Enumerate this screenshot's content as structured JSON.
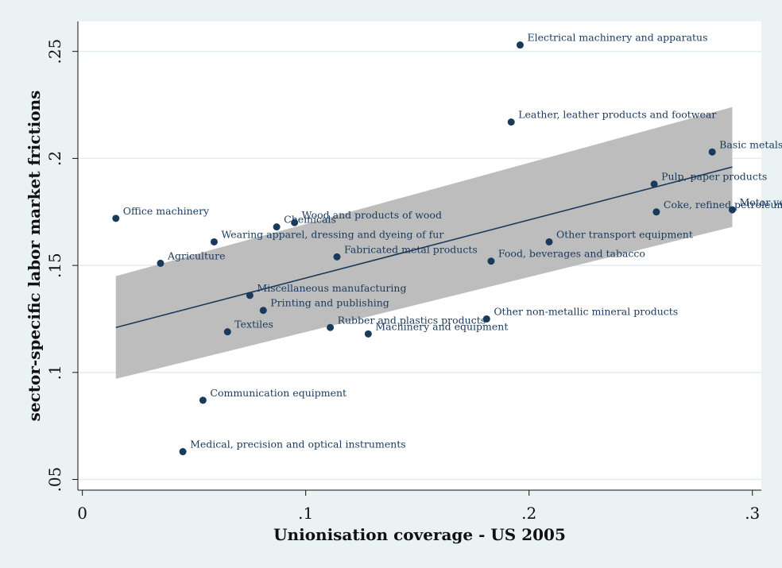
{
  "chart_data": {
    "type": "scatter",
    "xlabel": "Unionisation coverage - US 2005",
    "ylabel": "sector-specific labor market frictions",
    "xlim": [
      -0.002,
      0.304
    ],
    "ylim": [
      0.045,
      0.264
    ],
    "xticks": [
      0,
      0.1,
      0.2,
      0.3
    ],
    "xtick_labels": [
      "0",
      ".1",
      ".2",
      ".3"
    ],
    "yticks": [
      0.05,
      0.1,
      0.15,
      0.2,
      0.25
    ],
    "ytick_labels": [
      ".05",
      ".1",
      ".15",
      ".2",
      ".25"
    ],
    "grid": "horizontal",
    "points": [
      {
        "label": "Electrical machinery and apparatus",
        "x": 0.196,
        "y": 0.253
      },
      {
        "label": "Leather, leather products and footwear",
        "x": 0.192,
        "y": 0.217
      },
      {
        "label": "Basic metals",
        "x": 0.282,
        "y": 0.203
      },
      {
        "label": "Pulp, paper products",
        "x": 0.256,
        "y": 0.188
      },
      {
        "label": "Motor vehicles",
        "x": 0.291,
        "y": 0.176
      },
      {
        "label": "Coke, refined petroleum products",
        "x": 0.257,
        "y": 0.175
      },
      {
        "label": "Office machinery",
        "x": 0.015,
        "y": 0.172
      },
      {
        "label": "Chemicals",
        "x": 0.087,
        "y": 0.168
      },
      {
        "label": "Wood and products of wood",
        "x": 0.095,
        "y": 0.17
      },
      {
        "label": "Wearing apparel, dressing and dyeing of fur",
        "x": 0.059,
        "y": 0.161
      },
      {
        "label": "Other transport equipment",
        "x": 0.209,
        "y": 0.161
      },
      {
        "label": "Fabricated metal products",
        "x": 0.114,
        "y": 0.154
      },
      {
        "label": "Agriculture",
        "x": 0.035,
        "y": 0.151
      },
      {
        "label": "Food, beverages and tabacco",
        "x": 0.183,
        "y": 0.152
      },
      {
        "label": "Miscellaneous manufacturing",
        "x": 0.075,
        "y": 0.136
      },
      {
        "label": "Printing and publishing",
        "x": 0.081,
        "y": 0.129
      },
      {
        "label": "Other non-metallic mineral products",
        "x": 0.181,
        "y": 0.125
      },
      {
        "label": "Rubber and plastics products",
        "x": 0.111,
        "y": 0.121
      },
      {
        "label": "Textiles",
        "x": 0.065,
        "y": 0.119
      },
      {
        "label": "Machinery and equipment",
        "x": 0.128,
        "y": 0.118
      },
      {
        "label": "Communication equipment",
        "x": 0.054,
        "y": 0.087
      },
      {
        "label": "Medical, precision and optical instruments",
        "x": 0.045,
        "y": 0.063
      }
    ],
    "fit_line": {
      "x": [
        0.015,
        0.291
      ],
      "y": [
        0.121,
        0.196
      ]
    },
    "confidence_band": {
      "x": [
        0.015,
        0.291
      ],
      "upper": [
        0.145,
        0.224
      ],
      "lower": [
        0.097,
        0.168
      ]
    },
    "colors": {
      "background": "#eaf2f3",
      "plot_area": "#ffffff",
      "marker": "#1a3a5c",
      "fit_line": "#1a3a5c",
      "band": "#bdbdbd",
      "grid": "#e3ecee"
    }
  }
}
